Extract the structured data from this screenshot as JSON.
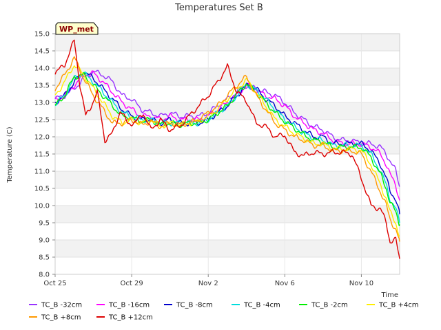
{
  "chart_data": {
    "type": "line",
    "title": "Temperatures Set B",
    "xlabel": "Time",
    "ylabel": "Temperature (C)",
    "badge": "WP_met",
    "x_start": "Oct 25",
    "x_ticks": [
      "Oct 25",
      "Oct 29",
      "Nov 2",
      "Nov 6",
      "Nov 10"
    ],
    "y_ticks": [
      "8.0",
      "8.5",
      "9.0",
      "9.5",
      "10.0",
      "10.5",
      "11.0",
      "11.5",
      "12.0",
      "12.5",
      "13.0",
      "13.5",
      "14.0",
      "14.5",
      "15.0"
    ],
    "ylim": [
      8.0,
      15.0
    ],
    "xlim_days": [
      0,
      18
    ],
    "grid": true,
    "legend_position": "bottom",
    "series": [
      {
        "name": "TC_B -32cm",
        "color": "#9933ff",
        "x": [
          0,
          0.5,
          1,
          1.5,
          2,
          2.5,
          3,
          3.5,
          4,
          4.5,
          5,
          5.5,
          6,
          6.5,
          7,
          7.5,
          8,
          8.5,
          9,
          9.5,
          10,
          10.5,
          11,
          11.5,
          12,
          12.5,
          13,
          13.5,
          14,
          14.5,
          15,
          15.5,
          16,
          16.5,
          17,
          17.3,
          17.5,
          17.8,
          18.0
        ],
        "y": [
          13.1,
          13.2,
          13.4,
          13.7,
          13.9,
          13.8,
          13.6,
          13.2,
          13.1,
          12.8,
          12.7,
          12.6,
          12.7,
          12.6,
          12.6,
          12.6,
          12.7,
          12.9,
          13.1,
          13.3,
          13.5,
          13.4,
          13.3,
          13.2,
          13.0,
          12.7,
          12.5,
          12.3,
          12.2,
          12.0,
          11.9,
          11.9,
          11.8,
          11.8,
          11.7,
          11.5,
          11.3,
          11.0,
          10.55
        ]
      },
      {
        "name": "TC_B -16cm",
        "color": "#ff00ff",
        "x": [
          0,
          0.5,
          1,
          1.5,
          2,
          2.5,
          3,
          3.5,
          4,
          4.5,
          5,
          5.5,
          6,
          6.5,
          7,
          7.5,
          8,
          8.5,
          9,
          9.5,
          10,
          10.5,
          11,
          11.5,
          12,
          12.5,
          13,
          13.5,
          14,
          14.5,
          15,
          15.5,
          16,
          16.5,
          17,
          17.3,
          17.5,
          17.8,
          18.0
        ],
        "y": [
          13.05,
          13.2,
          13.5,
          13.8,
          13.85,
          13.6,
          13.3,
          13.0,
          12.8,
          12.6,
          12.6,
          12.5,
          12.6,
          12.5,
          12.5,
          12.5,
          12.6,
          12.8,
          13.0,
          13.2,
          13.5,
          13.35,
          13.2,
          13.1,
          12.9,
          12.6,
          12.4,
          12.2,
          12.1,
          11.9,
          11.8,
          11.8,
          11.8,
          11.7,
          11.5,
          11.2,
          10.9,
          10.6,
          10.15
        ]
      },
      {
        "name": "TC_B -8cm",
        "color": "#0000cc",
        "x": [
          0,
          0.5,
          1,
          1.5,
          2,
          2.5,
          3,
          3.5,
          4,
          4.5,
          5,
          5.5,
          6,
          6.5,
          7,
          7.5,
          8,
          8.5,
          9,
          9.5,
          10,
          10.5,
          11,
          11.5,
          12,
          12.5,
          13,
          13.5,
          14,
          14.5,
          15,
          15.5,
          16,
          16.5,
          17,
          17.3,
          17.5,
          17.8,
          18.0
        ],
        "y": [
          13.0,
          13.2,
          13.6,
          13.9,
          13.7,
          13.4,
          13.1,
          12.8,
          12.6,
          12.5,
          12.5,
          12.4,
          12.5,
          12.4,
          12.4,
          12.4,
          12.5,
          12.7,
          12.9,
          13.2,
          13.5,
          13.4,
          13.1,
          12.9,
          12.6,
          12.4,
          12.2,
          12.0,
          12.0,
          11.8,
          11.8,
          11.8,
          11.8,
          11.6,
          11.2,
          10.8,
          10.4,
          10.2,
          9.75
        ]
      },
      {
        "name": "TC_B -4cm",
        "color": "#00dddd",
        "x": [
          0,
          0.5,
          1,
          1.5,
          2,
          2.5,
          3,
          3.5,
          4,
          4.5,
          5,
          5.5,
          6,
          6.5,
          7,
          7.5,
          8,
          8.5,
          9,
          9.5,
          10,
          10.5,
          11,
          11.5,
          12,
          12.5,
          13,
          13.5,
          14,
          14.5,
          15,
          15.5,
          16,
          16.5,
          17,
          17.3,
          17.5,
          17.8,
          18.0
        ],
        "y": [
          12.95,
          13.2,
          13.7,
          13.85,
          13.6,
          13.3,
          13.0,
          12.7,
          12.6,
          12.5,
          12.5,
          12.4,
          12.4,
          12.4,
          12.4,
          12.4,
          12.5,
          12.7,
          12.9,
          13.2,
          13.55,
          13.35,
          13.1,
          12.8,
          12.5,
          12.3,
          12.1,
          11.95,
          11.9,
          11.75,
          11.75,
          11.75,
          11.75,
          11.5,
          11.0,
          10.6,
          10.2,
          9.9,
          9.5
        ]
      },
      {
        "name": "TC_B -2cm",
        "color": "#00ee00",
        "x": [
          0,
          0.5,
          1,
          1.5,
          2,
          2.5,
          3,
          3.5,
          4,
          4.5,
          5,
          5.5,
          6,
          6.5,
          7,
          7.5,
          8,
          8.5,
          9,
          9.5,
          10,
          10.5,
          11,
          11.5,
          12,
          12.5,
          13,
          13.5,
          14,
          14.5,
          15,
          15.5,
          16,
          16.5,
          17,
          17.3,
          17.5,
          17.8,
          18.0
        ],
        "y": [
          12.9,
          13.2,
          13.75,
          13.8,
          13.5,
          13.2,
          12.9,
          12.6,
          12.55,
          12.45,
          12.5,
          12.35,
          12.4,
          12.35,
          12.4,
          12.4,
          12.5,
          12.7,
          12.9,
          13.25,
          13.55,
          13.3,
          13.0,
          12.7,
          12.45,
          12.25,
          12.05,
          11.9,
          11.85,
          11.7,
          11.7,
          11.7,
          11.7,
          11.4,
          10.9,
          10.5,
          10.1,
          9.8,
          9.45
        ]
      },
      {
        "name": "TC_B +4cm",
        "color": "#ffee00",
        "x": [
          0,
          0.5,
          1,
          1.5,
          2,
          2.5,
          3,
          3.5,
          4,
          4.5,
          5,
          5.5,
          6,
          6.5,
          7,
          7.5,
          8,
          8.5,
          9,
          9.5,
          10,
          10.5,
          11,
          11.5,
          12,
          12.5,
          13,
          13.5,
          14,
          14.5,
          15,
          15.5,
          16,
          16.5,
          17,
          17.3,
          17.5,
          17.8,
          18.0
        ],
        "y": [
          13.2,
          13.6,
          14.1,
          13.8,
          13.4,
          13.0,
          12.6,
          12.4,
          12.5,
          12.4,
          12.5,
          12.3,
          12.4,
          12.35,
          12.4,
          12.45,
          12.6,
          12.8,
          13.1,
          13.4,
          13.65,
          13.3,
          12.9,
          12.5,
          12.3,
          12.1,
          11.95,
          11.8,
          11.8,
          11.65,
          11.65,
          11.65,
          11.6,
          11.2,
          10.6,
          10.2,
          9.8,
          9.5,
          9.1
        ]
      },
      {
        "name": "TC_B +8cm",
        "color": "#ff9900",
        "x": [
          0,
          0.5,
          1,
          1.5,
          2,
          2.5,
          3,
          3.5,
          4,
          4.5,
          5,
          5.5,
          6,
          6.5,
          7,
          7.5,
          8,
          8.5,
          9,
          9.5,
          10,
          10.5,
          11,
          11.5,
          12,
          12.5,
          13,
          13.5,
          14,
          14.5,
          15,
          15.5,
          16,
          16.5,
          17,
          17.3,
          17.5,
          17.8,
          18.0
        ],
        "y": [
          13.4,
          13.8,
          14.3,
          13.7,
          13.2,
          12.8,
          12.4,
          12.4,
          12.5,
          12.35,
          12.45,
          12.3,
          12.4,
          12.35,
          12.4,
          12.5,
          12.7,
          12.9,
          13.2,
          13.5,
          13.75,
          13.2,
          12.8,
          12.4,
          12.2,
          12.0,
          11.9,
          11.75,
          11.75,
          11.6,
          11.6,
          11.6,
          11.5,
          11.0,
          10.4,
          10.0,
          9.6,
          9.3,
          8.95
        ]
      },
      {
        "name": "TC_B +12cm",
        "color": "#dd0000",
        "x": [
          0,
          0.5,
          1,
          1.3,
          1.6,
          1.8,
          2.2,
          2.6,
          3.0,
          3.4,
          3.8,
          4.2,
          4.6,
          5,
          5.5,
          6,
          6.5,
          7,
          7.5,
          8,
          8.5,
          9,
          9.5,
          10,
          10.5,
          11,
          11.5,
          12,
          12.5,
          13,
          13.5,
          14,
          14.5,
          15,
          15.5,
          16,
          16.5,
          17,
          17.3,
          17.5,
          17.8,
          18.0
        ],
        "y": [
          13.85,
          14.1,
          14.8,
          13.5,
          12.6,
          12.8,
          13.3,
          11.9,
          12.1,
          12.75,
          12.4,
          12.4,
          12.7,
          12.2,
          12.5,
          12.2,
          12.3,
          12.6,
          12.9,
          13.2,
          13.6,
          14.05,
          13.3,
          13.05,
          12.4,
          12.3,
          12.0,
          12.05,
          11.55,
          11.45,
          11.55,
          11.5,
          11.55,
          11.55,
          11.5,
          10.8,
          10.0,
          9.9,
          9.5,
          8.95,
          9.0,
          8.45
        ]
      }
    ]
  }
}
